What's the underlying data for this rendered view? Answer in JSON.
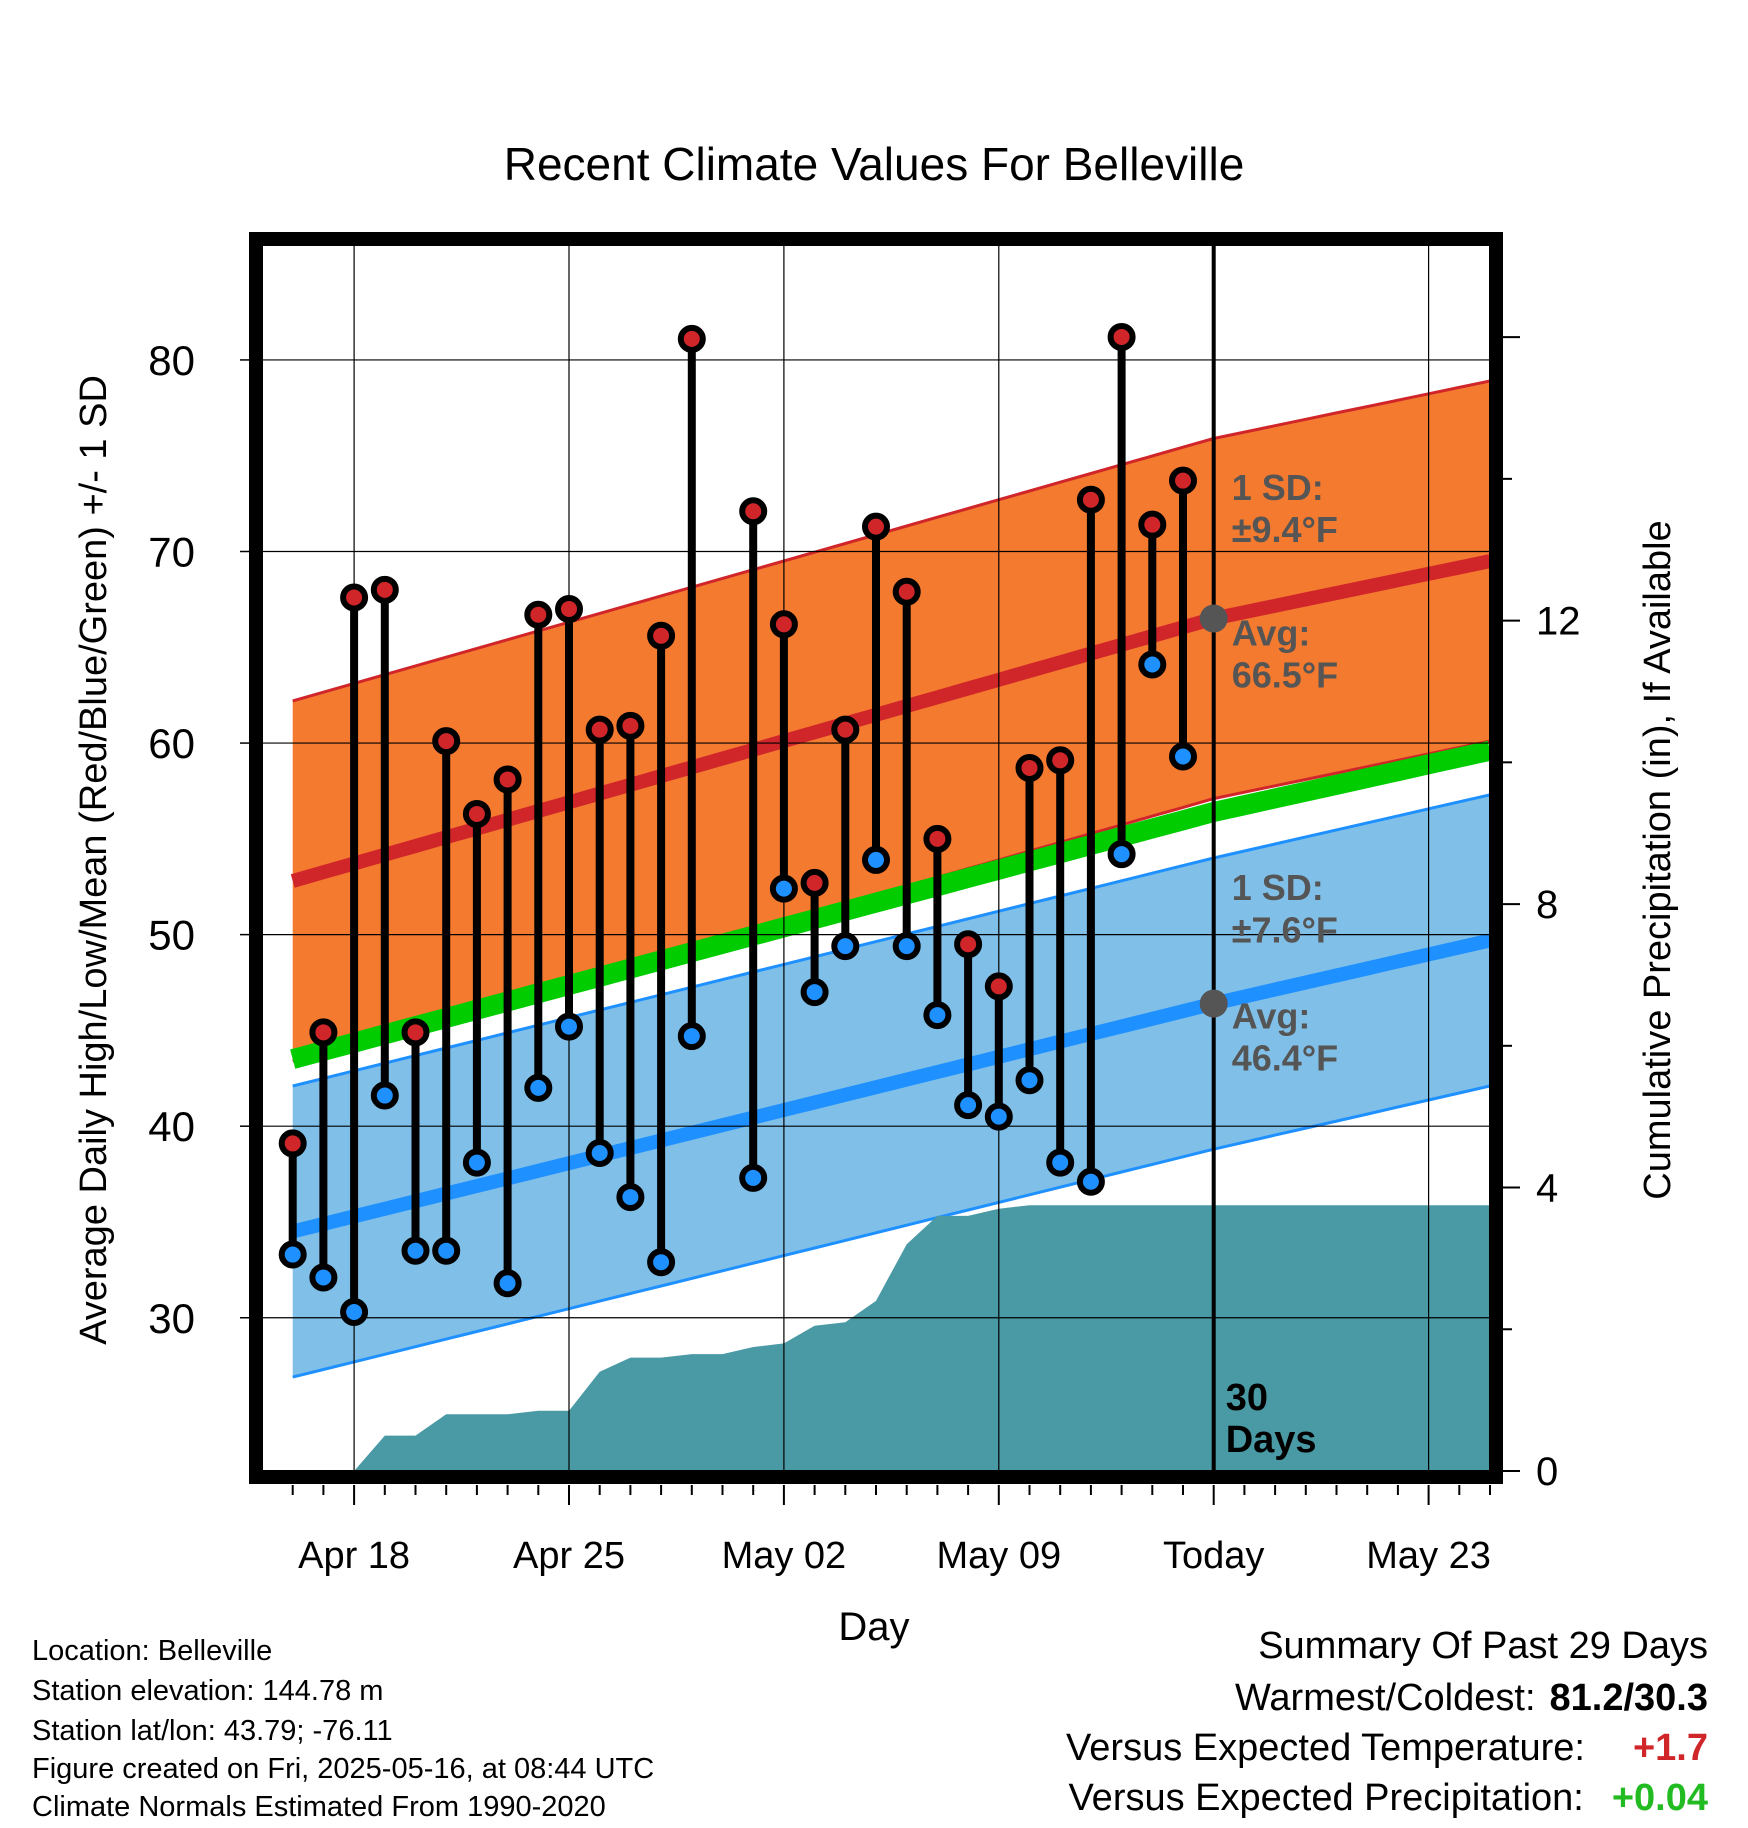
{
  "chart_data": {
    "type": "line",
    "title": "Recent Climate Values For Belleville",
    "xlabel": "Day",
    "ylabel_left": "Average Daily High/Low/Mean (Red/Blue/Green) +/- 1 SD",
    "ylabel_right": "Cumulative Precipitation (in), If Available",
    "x_ticks": [
      "Apr 18",
      "Apr 25",
      "May 02",
      "May 09",
      "Today",
      "May 23"
    ],
    "x_range": [
      "2025-04-15",
      "2025-05-25"
    ],
    "ylim_left": [
      22,
      86
    ],
    "left_ticks": [
      30,
      40,
      50,
      60,
      70,
      80
    ],
    "ylim_right": [
      0,
      17.3
    ],
    "right_ticks": [
      0,
      4,
      8,
      12
    ],
    "grid": true,
    "days_marker": "30 Days",
    "normals": {
      "dates": [
        "2025-04-16",
        "2025-05-16",
        "2025-05-25"
      ],
      "high_mean": [
        52.8,
        66.5,
        69.5
      ],
      "high_sd": 9.4,
      "low_mean": [
        34.5,
        46.4,
        49.7
      ],
      "low_sd": 7.6,
      "mean_mean": [
        43.5,
        56.4,
        59.6
      ],
      "colors": {
        "high_band": "#f47a30",
        "high_line": "#d0262a",
        "low_band": "#80c0e8",
        "low_line": "#1e90ff",
        "mean_line": "#00cc00",
        "precip_area": "#4a9aa5"
      }
    },
    "high_annotation": {
      "sd": "1 SD:",
      "sd_value": "±9.4°F",
      "avg": "Avg:",
      "avg_value": "66.5°F"
    },
    "low_annotation": {
      "sd": "1 SD:",
      "sd_value": "±7.6°F",
      "avg": "Avg:",
      "avg_value": "46.4°F"
    },
    "series": [
      {
        "name": "High",
        "color": "#d0262a",
        "dates": [
          "2025-04-16",
          "2025-04-17",
          "2025-04-18",
          "2025-04-19",
          "2025-04-20",
          "2025-04-21",
          "2025-04-22",
          "2025-04-23",
          "2025-04-24",
          "2025-04-25",
          "2025-04-26",
          "2025-04-27",
          "2025-04-28",
          "2025-04-29",
          "2025-05-01",
          "2025-05-02",
          "2025-05-03",
          "2025-05-04",
          "2025-05-05",
          "2025-05-06",
          "2025-05-07",
          "2025-05-08",
          "2025-05-09",
          "2025-05-10",
          "2025-05-11",
          "2025-05-12",
          "2025-05-13",
          "2025-05-14",
          "2025-05-15"
        ],
        "values": [
          39.1,
          44.9,
          67.6,
          68.0,
          44.9,
          60.1,
          56.3,
          58.1,
          66.7,
          67.0,
          60.7,
          60.9,
          65.6,
          81.1,
          72.1,
          66.2,
          52.7,
          60.7,
          71.3,
          67.9,
          55.0,
          49.5,
          47.3,
          58.7,
          59.1,
          72.7,
          81.2,
          71.4,
          73.7
        ]
      },
      {
        "name": "Low",
        "color": "#1e90ff",
        "dates": [
          "2025-04-16",
          "2025-04-17",
          "2025-04-18",
          "2025-04-19",
          "2025-04-20",
          "2025-04-21",
          "2025-04-22",
          "2025-04-23",
          "2025-04-24",
          "2025-04-25",
          "2025-04-26",
          "2025-04-27",
          "2025-04-28",
          "2025-04-29",
          "2025-05-01",
          "2025-05-02",
          "2025-05-03",
          "2025-05-04",
          "2025-05-05",
          "2025-05-06",
          "2025-05-07",
          "2025-05-08",
          "2025-05-09",
          "2025-05-10",
          "2025-05-11",
          "2025-05-12",
          "2025-05-13",
          "2025-05-14",
          "2025-05-15"
        ],
        "values": [
          33.3,
          32.1,
          30.3,
          41.6,
          33.5,
          33.5,
          38.1,
          31.8,
          42.0,
          45.2,
          38.6,
          36.3,
          32.9,
          44.7,
          37.3,
          52.4,
          47.0,
          49.4,
          53.9,
          49.4,
          45.8,
          41.1,
          40.5,
          42.4,
          38.1,
          37.1,
          54.2,
          64.1,
          59.3
        ]
      },
      {
        "name": "Cumulative Precipitation",
        "color": "#4a9aa5",
        "dates": [
          "2025-04-18",
          "2025-04-19",
          "2025-04-20",
          "2025-04-21",
          "2025-04-22",
          "2025-04-23",
          "2025-04-24",
          "2025-04-25",
          "2025-04-26",
          "2025-04-27",
          "2025-04-28",
          "2025-04-29",
          "2025-04-30",
          "2025-05-01",
          "2025-05-02",
          "2025-05-03",
          "2025-05-04",
          "2025-05-05",
          "2025-05-06",
          "2025-05-07",
          "2025-05-08",
          "2025-05-09",
          "2025-05-10",
          "2025-05-11",
          "2025-05-12",
          "2025-05-13",
          "2025-05-14",
          "2025-05-15",
          "2025-05-25"
        ],
        "values": [
          0.0,
          0.5,
          0.5,
          0.8,
          0.8,
          0.8,
          0.85,
          0.85,
          1.4,
          1.6,
          1.6,
          1.65,
          1.65,
          1.75,
          1.8,
          2.05,
          2.1,
          2.4,
          3.2,
          3.6,
          3.6,
          3.7,
          3.75,
          3.75,
          3.75,
          3.75,
          3.75,
          3.75,
          3.75
        ]
      }
    ]
  },
  "footer": {
    "location": "Location: Belleville",
    "elevation": "Station elevation: 144.78 m",
    "latlon": "Station lat/lon: 43.79; -76.11",
    "created": "Figure created on Fri, 2025-05-16, at 08:44 UTC",
    "normals": "Climate Normals Estimated From 1990-2020"
  },
  "summary": {
    "title": "Summary Of Past 29 Days",
    "warmest_label": "Warmest/Coldest:",
    "warmest_value": "81.2/30.3",
    "temp_label": "Versus Expected Temperature:",
    "temp_value": "+1.7",
    "temp_color": "#d0262a",
    "precip_label": "Versus Expected Precipitation:",
    "precip_value": "+0.04",
    "precip_color": "#22bb22"
  }
}
